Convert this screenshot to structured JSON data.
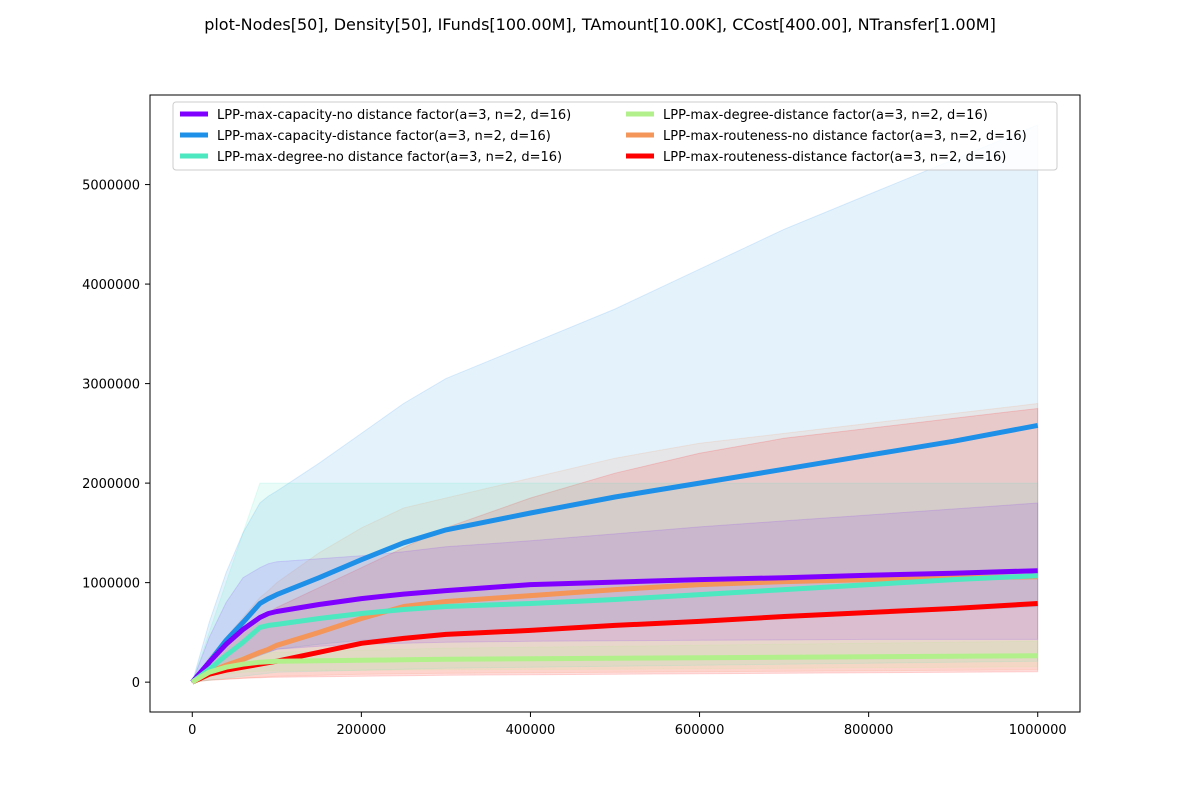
{
  "chart_data": {
    "type": "line",
    "title": "plot-Nodes[50], Density[50], IFunds[100.00M], TAmount[10.00K], CCost[400.00], NTransfer[1.00M]",
    "xlabel": "",
    "ylabel": "",
    "xlim": [
      -50000,
      1050000
    ],
    "ylim": [
      -300000,
      5900000
    ],
    "x_ticks": [
      0,
      200000,
      400000,
      600000,
      800000,
      1000000
    ],
    "x_tick_labels": [
      "0",
      "200000",
      "400000",
      "600000",
      "800000",
      "1000000"
    ],
    "y_ticks": [
      0,
      1000000,
      2000000,
      3000000,
      4000000,
      5000000
    ],
    "y_tick_labels": [
      "0",
      "1000000",
      "2000000",
      "3000000",
      "4000000",
      "5000000"
    ],
    "grid": false,
    "legend_position": "top",
    "x": [
      0,
      20000,
      40000,
      60000,
      80000,
      90000,
      100000,
      150000,
      200000,
      250000,
      300000,
      400000,
      500000,
      600000,
      700000,
      800000,
      900000,
      1000000
    ],
    "series": [
      {
        "name": "LPP-max-capacity-no distance factor(a=3, n=2, d=16)",
        "color": "#8000ff",
        "values": [
          0,
          200000,
          380000,
          530000,
          650000,
          690000,
          710000,
          780000,
          840000,
          885000,
          920000,
          980000,
          1005000,
          1030000,
          1050000,
          1075000,
          1095000,
          1120000
        ],
        "lower": [
          0,
          80000,
          160000,
          220000,
          270000,
          300000,
          330000,
          360000,
          380000,
          390000,
          400000,
          410000,
          415000,
          420000,
          425000,
          430000,
          430000,
          430000
        ],
        "upper": [
          0,
          450000,
          800000,
          1050000,
          1150000,
          1190000,
          1210000,
          1240000,
          1270000,
          1310000,
          1360000,
          1420000,
          1490000,
          1560000,
          1620000,
          1680000,
          1740000,
          1800000
        ]
      },
      {
        "name": "LPP-max-capacity-distance factor(a=3, n=2, d=16)",
        "color": "#1e90e8",
        "values": [
          0,
          200000,
          420000,
          600000,
          790000,
          840000,
          880000,
          1050000,
          1230000,
          1400000,
          1530000,
          1700000,
          1860000,
          2000000,
          2140000,
          2280000,
          2420000,
          2580000
        ],
        "lower": [
          0,
          60000,
          130000,
          200000,
          270000,
          300000,
          330000,
          380000,
          420000,
          450000,
          480000,
          520000,
          560000,
          600000,
          640000,
          680000,
          720000,
          760000
        ],
        "upper": [
          0,
          600000,
          1100000,
          1500000,
          1800000,
          1870000,
          1920000,
          2200000,
          2500000,
          2800000,
          3050000,
          3400000,
          3750000,
          4150000,
          4550000,
          4900000,
          5250000,
          5600000
        ]
      },
      {
        "name": "LPP-max-degree-no distance factor(a=3, n=2, d=16)",
        "color": "#4de8c0",
        "values": [
          0,
          130000,
          270000,
          400000,
          550000,
          570000,
          580000,
          640000,
          690000,
          730000,
          760000,
          790000,
          830000,
          880000,
          930000,
          980000,
          1030000,
          1070000
        ],
        "lower": [
          0,
          20000,
          40000,
          60000,
          80000,
          90000,
          100000,
          110000,
          120000,
          130000,
          140000,
          150000,
          160000,
          170000,
          180000,
          190000,
          200000,
          210000
        ],
        "upper": [
          0,
          500000,
          1000000,
          1500000,
          2000000,
          2000000,
          2000000,
          2000000,
          2000000,
          2000000,
          2000000,
          2000000,
          2000000,
          2000000,
          2000000,
          2000000,
          2000000,
          2000000
        ]
      },
      {
        "name": "LPP-max-degree-distance factor(a=3, n=2, d=16)",
        "color": "#b2f08c",
        "values": [
          0,
          100000,
          150000,
          180000,
          200000,
          205000,
          210000,
          215000,
          220000,
          225000,
          230000,
          235000,
          240000,
          245000,
          250000,
          255000,
          260000,
          265000
        ],
        "lower": [
          0,
          60000,
          80000,
          100000,
          110000,
          112000,
          115000,
          118000,
          120000,
          122000,
          125000,
          128000,
          130000,
          135000,
          140000,
          145000,
          150000,
          155000
        ],
        "upper": [
          0,
          140000,
          220000,
          260000,
          290000,
          295000,
          300000,
          310000,
          320000,
          330000,
          340000,
          350000,
          360000,
          370000,
          380000,
          390000,
          400000,
          410000
        ]
      },
      {
        "name": "LPP-max-routeness-no distance factor(a=3, n=2, d=16)",
        "color": "#f4955a",
        "values": [
          0,
          100000,
          170000,
          230000,
          300000,
          330000,
          370000,
          500000,
          640000,
          760000,
          810000,
          870000,
          930000,
          980000,
          1010000,
          1030000,
          1050000,
          1060000
        ],
        "lower": [
          0,
          20000,
          30000,
          40000,
          50000,
          55000,
          60000,
          70000,
          80000,
          85000,
          90000,
          95000,
          100000,
          105000,
          110000,
          115000,
          120000,
          125000
        ],
        "upper": [
          0,
          250000,
          450000,
          650000,
          850000,
          920000,
          1000000,
          1300000,
          1550000,
          1750000,
          1850000,
          2050000,
          2250000,
          2400000,
          2500000,
          2600000,
          2700000,
          2800000
        ]
      },
      {
        "name": "LPP-max-routeness-distance factor(a=3, n=2, d=16)",
        "color": "#ff0000",
        "values": [
          0,
          80000,
          120000,
          150000,
          180000,
          195000,
          210000,
          300000,
          390000,
          440000,
          480000,
          520000,
          570000,
          610000,
          660000,
          700000,
          740000,
          790000
        ],
        "lower": [
          0,
          20000,
          30000,
          40000,
          45000,
          48000,
          50000,
          55000,
          60000,
          65000,
          70000,
          75000,
          80000,
          85000,
          90000,
          95000,
          100000,
          105000
        ],
        "upper": [
          0,
          200000,
          350000,
          500000,
          650000,
          700000,
          750000,
          950000,
          1150000,
          1350000,
          1550000,
          1850000,
          2100000,
          2300000,
          2450000,
          2550000,
          2650000,
          2750000
        ]
      }
    ],
    "legend_columns": 2
  }
}
